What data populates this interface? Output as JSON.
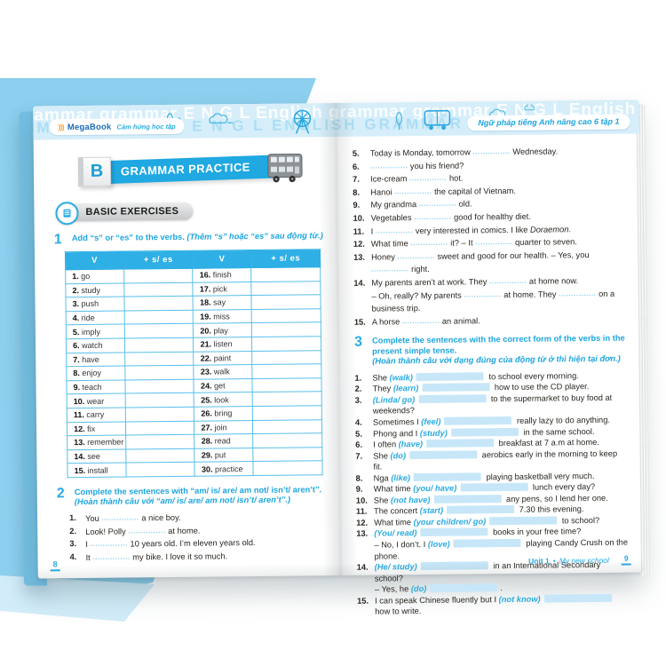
{
  "colors": {
    "accent": "#29abe2",
    "band": "#d6eefa",
    "backdrop": "#8ccfee",
    "table_border": "#58bfe9",
    "blank": "#c7e7f8"
  },
  "brand": {
    "mark": "⟩⟩⟩",
    "name": "MegaBook",
    "tagline": "Cảm hứng học tập"
  },
  "band": {
    "watermark": "grammar grammar E N G L English "
  },
  "right_header_badge": "Ngữ pháp tiếng Anh nâng cao 6 tập 1",
  "banner": {
    "letter": "B",
    "title": "GRAMMAR PRACTICE"
  },
  "subsection": {
    "label": "BASIC EXERCISES"
  },
  "exercise1": {
    "num": "1",
    "instruction_en": "Add “s” or “es” to the verbs.",
    "instruction_vi": "(Thêm “s” hoặc “es” sau động từ.)",
    "table": {
      "headers": [
        "V",
        "+ s/ es",
        "V",
        "+ s/ es"
      ],
      "rows": [
        {
          "n1": "1.",
          "v1": "go",
          "n2": "16.",
          "v2": "finish"
        },
        {
          "n1": "2.",
          "v1": "study",
          "n2": "17.",
          "v2": "pick"
        },
        {
          "n1": "3.",
          "v1": "push",
          "n2": "18.",
          "v2": "say"
        },
        {
          "n1": "4.",
          "v1": "ride",
          "n2": "19.",
          "v2": "miss"
        },
        {
          "n1": "5.",
          "v1": "imply",
          "n2": "20.",
          "v2": "play"
        },
        {
          "n1": "6.",
          "v1": "watch",
          "n2": "21.",
          "v2": "listen"
        },
        {
          "n1": "7.",
          "v1": "have",
          "n2": "22.",
          "v2": "paint"
        },
        {
          "n1": "8.",
          "v1": "enjoy",
          "n2": "23.",
          "v2": "walk"
        },
        {
          "n1": "9.",
          "v1": "teach",
          "n2": "24.",
          "v2": "get"
        },
        {
          "n1": "10.",
          "v1": "wear",
          "n2": "25.",
          "v2": "look"
        },
        {
          "n1": "11.",
          "v1": "carry",
          "n2": "26.",
          "v2": "bring"
        },
        {
          "n1": "12.",
          "v1": "fix",
          "n2": "27.",
          "v2": "join"
        },
        {
          "n1": "13.",
          "v1": "remember",
          "n2": "28.",
          "v2": "read"
        },
        {
          "n1": "14.",
          "v1": "see",
          "n2": "29.",
          "v2": "put"
        },
        {
          "n1": "15.",
          "v1": "install",
          "n2": "30.",
          "v2": "practice"
        }
      ]
    }
  },
  "exercise2": {
    "num": "2",
    "instruction_en": "Complete the sentences with “am/ is/ are/ am not/ isn’t/ aren’t”.",
    "instruction_vi": "(Hoàn thành câu với “am/ is/ are/ am not/ isn’t/ aren’t”.)",
    "items": [
      {
        "n": "1.",
        "segs": [
          [
            "t",
            "You "
          ],
          [
            "d"
          ],
          [
            "t",
            " a nice boy."
          ]
        ]
      },
      {
        "n": "2.",
        "segs": [
          [
            "t",
            "Look! Polly "
          ],
          [
            "d"
          ],
          [
            "t",
            " at home."
          ]
        ]
      },
      {
        "n": "3.",
        "segs": [
          [
            "t",
            "I "
          ],
          [
            "d"
          ],
          [
            "t",
            " 10 years old. I’m eleven years old."
          ]
        ]
      },
      {
        "n": "4.",
        "segs": [
          [
            "t",
            "It "
          ],
          [
            "d"
          ],
          [
            "t",
            " my bike. I love it so much."
          ]
        ]
      }
    ],
    "items_continued": [
      {
        "n": "5.",
        "segs": [
          [
            "t",
            "Today is Monday, tomorrow "
          ],
          [
            "d"
          ],
          [
            "t",
            " Wednesday."
          ]
        ]
      },
      {
        "n": "6.",
        "segs": [
          [
            "d"
          ],
          [
            "t",
            " you his friend?"
          ]
        ]
      },
      {
        "n": "7.",
        "segs": [
          [
            "t",
            "Ice-cream "
          ],
          [
            "d"
          ],
          [
            "t",
            " hot."
          ]
        ]
      },
      {
        "n": "8.",
        "segs": [
          [
            "t",
            "Hanoi "
          ],
          [
            "d"
          ],
          [
            "t",
            " the capital of Vietnam."
          ]
        ]
      },
      {
        "n": "9.",
        "segs": [
          [
            "t",
            "My grandma "
          ],
          [
            "d"
          ],
          [
            "t",
            " old."
          ]
        ]
      },
      {
        "n": "10.",
        "segs": [
          [
            "t",
            "Vegetables "
          ],
          [
            "d"
          ],
          [
            "t",
            " good for healthy diet."
          ]
        ]
      },
      {
        "n": "11.",
        "segs": [
          [
            "t",
            "I "
          ],
          [
            "d"
          ],
          [
            "t",
            " very interested in comics. I like "
          ],
          [
            "i",
            "Doraemon"
          ],
          [
            "t",
            "."
          ]
        ]
      },
      {
        "n": "12.",
        "segs": [
          [
            "t",
            "What time "
          ],
          [
            "d"
          ],
          [
            "t",
            " it? – It "
          ],
          [
            "d"
          ],
          [
            "t",
            " quarter to seven."
          ]
        ]
      },
      {
        "n": "13.",
        "segs": [
          [
            "t",
            "Honey "
          ],
          [
            "d"
          ],
          [
            "t",
            " sweet and good for our health. – Yes, you "
          ],
          [
            "d"
          ],
          [
            "t",
            " right."
          ]
        ]
      },
      {
        "n": "14.",
        "segs": [
          [
            "t",
            "My parents aren’t at work. They "
          ],
          [
            "d"
          ],
          [
            "t",
            " at home now."
          ]
        ]
      },
      {
        "n": "",
        "segs": [
          [
            "t",
            "– Oh, really? My parents "
          ],
          [
            "d"
          ],
          [
            "t",
            " at home. They "
          ],
          [
            "d"
          ],
          [
            "t",
            " on a business trip."
          ]
        ]
      },
      {
        "n": "15.",
        "segs": [
          [
            "t",
            "A horse "
          ],
          [
            "d"
          ],
          [
            "t",
            " an animal."
          ]
        ]
      }
    ]
  },
  "exercise3": {
    "num": "3",
    "instruction_en": "Complete the sentences with the correct form of the verbs in the present simple tense.",
    "instruction_vi": "(Hoàn thành câu với dạng đúng của động từ ở thì hiện tại đơn.)",
    "items": [
      {
        "n": "1.",
        "segs": [
          [
            "t",
            "She "
          ],
          [
            "v",
            "(walk)"
          ],
          [
            "b"
          ],
          [
            "t",
            " to school every morning."
          ]
        ]
      },
      {
        "n": "2.",
        "segs": [
          [
            "t",
            "They "
          ],
          [
            "v",
            "(learn)"
          ],
          [
            "b"
          ],
          [
            "t",
            " how to use the CD player."
          ]
        ]
      },
      {
        "n": "3.",
        "segs": [
          [
            "v",
            "(Linda/ go)"
          ],
          [
            "b"
          ],
          [
            "t",
            " to the supermarket to buy food at weekends?"
          ]
        ]
      },
      {
        "n": "4.",
        "segs": [
          [
            "t",
            "Sometimes I "
          ],
          [
            "v",
            "(feel)"
          ],
          [
            "b"
          ],
          [
            "t",
            " really lazy to do anything."
          ]
        ]
      },
      {
        "n": "5.",
        "segs": [
          [
            "t",
            "Phong and I "
          ],
          [
            "v",
            "(study)"
          ],
          [
            "b"
          ],
          [
            "t",
            " in the same school."
          ]
        ]
      },
      {
        "n": "6.",
        "segs": [
          [
            "t",
            "I often "
          ],
          [
            "v",
            "(have)"
          ],
          [
            "b"
          ],
          [
            "t",
            " breakfast at 7 a.m at home."
          ]
        ]
      },
      {
        "n": "7.",
        "segs": [
          [
            "t",
            "She "
          ],
          [
            "v",
            "(do)"
          ],
          [
            "b"
          ],
          [
            "t",
            " aerobics early in the morning to keep fit."
          ]
        ]
      },
      {
        "n": "8.",
        "segs": [
          [
            "t",
            "Nga "
          ],
          [
            "v",
            "(like)"
          ],
          [
            "b"
          ],
          [
            "t",
            " playing basketball very much."
          ]
        ]
      },
      {
        "n": "9.",
        "segs": [
          [
            "t",
            "What time "
          ],
          [
            "v",
            "(you/ have)"
          ],
          [
            "b"
          ],
          [
            "t",
            " lunch every day?"
          ]
        ]
      },
      {
        "n": "10.",
        "segs": [
          [
            "t",
            "She "
          ],
          [
            "v",
            "(not have)"
          ],
          [
            "b"
          ],
          [
            "t",
            " any pens, so I lend her one."
          ]
        ]
      },
      {
        "n": "11.",
        "segs": [
          [
            "t",
            "The concert "
          ],
          [
            "v",
            "(start)"
          ],
          [
            "b"
          ],
          [
            "t",
            " 7.30 this evening."
          ]
        ]
      },
      {
        "n": "12.",
        "segs": [
          [
            "t",
            "What time "
          ],
          [
            "v",
            "(your children/ go)"
          ],
          [
            "b"
          ],
          [
            "t",
            " to school?"
          ]
        ]
      },
      {
        "n": "13.",
        "segs": [
          [
            "v",
            "(You/ read)"
          ],
          [
            "b"
          ],
          [
            "t",
            " books in your free time?"
          ]
        ]
      },
      {
        "n": "",
        "segs": [
          [
            "t",
            "– No, I don’t. I "
          ],
          [
            "v",
            "(love)"
          ],
          [
            "b"
          ],
          [
            "t",
            " playing Candy Crush on the phone."
          ]
        ]
      },
      {
        "n": "14.",
        "segs": [
          [
            "v",
            "(He/ study)"
          ],
          [
            "b"
          ],
          [
            "t",
            " in an International Secondary school?"
          ]
        ]
      },
      {
        "n": "",
        "segs": [
          [
            "t",
            "– Yes, he "
          ],
          [
            "v",
            "(do)"
          ],
          [
            "b"
          ],
          [
            "t",
            "."
          ]
        ]
      },
      {
        "n": "15.",
        "segs": [
          [
            "t",
            "I can speak Chinese fluently but I "
          ],
          [
            "v",
            "(not know)"
          ],
          [
            "b"
          ],
          [
            "t",
            " how to write."
          ]
        ]
      }
    ]
  },
  "left_page_number": "8",
  "footer": {
    "unit": "Unit 1",
    "sep": "•",
    "title": "My new school",
    "page": "9"
  }
}
